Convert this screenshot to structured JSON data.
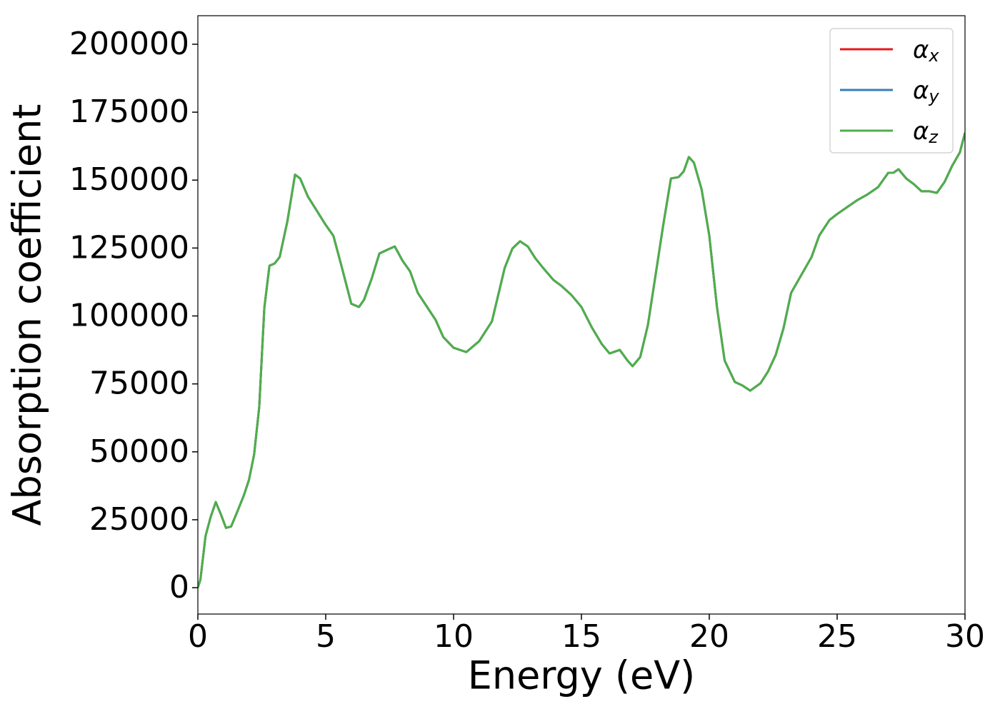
{
  "chart_data": {
    "type": "line",
    "xlabel": "Energy (eV)",
    "ylabel": "Absorption coefficient",
    "x": [
      0,
      0.1,
      0.3,
      0.5,
      0.7,
      0.9,
      1.1,
      1.3,
      1.5,
      1.8,
      2.0,
      2.2,
      2.4,
      2.6,
      2.8,
      3.0,
      3.2,
      3.5,
      3.8,
      4.0,
      4.3,
      4.6,
      5.0,
      5.3,
      5.6,
      6.0,
      6.3,
      6.5,
      6.8,
      7.1,
      7.4,
      7.7,
      8.0,
      8.3,
      8.6,
      9.0,
      9.3,
      9.6,
      10.0,
      10.5,
      11.0,
      11.5,
      12.0,
      12.3,
      12.6,
      12.9,
      13.2,
      13.5,
      13.9,
      14.2,
      14.6,
      15.0,
      15.4,
      15.8,
      16.1,
      16.5,
      16.8,
      17.0,
      17.3,
      17.6,
      17.9,
      18.2,
      18.5,
      18.8,
      19.0,
      19.2,
      19.4,
      19.7,
      20.0,
      20.3,
      20.6,
      21.0,
      21.3,
      21.6,
      22.0,
      22.3,
      22.6,
      22.9,
      23.2,
      23.6,
      24.0,
      24.3,
      24.7,
      25.0,
      25.4,
      25.8,
      26.2,
      26.6,
      27.0,
      27.2,
      27.4,
      27.7,
      28.0,
      28.3,
      28.6,
      28.9,
      29.2,
      29.5,
      29.8,
      30.0
    ],
    "series": [
      {
        "name": "αx",
        "color": "#e41a1c",
        "values": [
          0,
          3000,
          19000,
          26000,
          31500,
          27000,
          22000,
          22500,
          27000,
          34000,
          39700,
          49000,
          66500,
          103000,
          118500,
          119300,
          121700,
          134800,
          152000,
          150600,
          144000,
          139500,
          133500,
          129500,
          119000,
          104500,
          103300,
          106000,
          113800,
          123000,
          124300,
          125600,
          120400,
          116400,
          108500,
          102800,
          98500,
          92200,
          88300,
          86700,
          90700,
          98000,
          117700,
          124800,
          127500,
          125600,
          121200,
          117700,
          113300,
          111200,
          107800,
          103300,
          95900,
          89600,
          86200,
          87500,
          83600,
          81500,
          84900,
          96700,
          115100,
          133500,
          150600,
          151100,
          153200,
          158500,
          156400,
          146600,
          129600,
          103300,
          83600,
          75700,
          74400,
          72500,
          75200,
          79600,
          85700,
          95400,
          108500,
          115100,
          121700,
          129600,
          135300,
          137500,
          140100,
          142700,
          144800,
          147400,
          152700,
          152700,
          154000,
          150600,
          148500,
          145900,
          145900,
          145300,
          149300,
          155300,
          160200,
          167400
        ]
      },
      {
        "name": "αy",
        "color": "#377eb8",
        "values": [
          0,
          3000,
          19000,
          26000,
          31500,
          27000,
          22000,
          22500,
          27000,
          34000,
          39700,
          49000,
          66500,
          103000,
          118500,
          119300,
          121700,
          134800,
          152000,
          150600,
          144000,
          139500,
          133500,
          129500,
          119000,
          104500,
          103300,
          106000,
          113800,
          123000,
          124300,
          125600,
          120400,
          116400,
          108500,
          102800,
          98500,
          92200,
          88300,
          86700,
          90700,
          98000,
          117700,
          124800,
          127500,
          125600,
          121200,
          117700,
          113300,
          111200,
          107800,
          103300,
          95900,
          89600,
          86200,
          87500,
          83600,
          81500,
          84900,
          96700,
          115100,
          133500,
          150600,
          151100,
          153200,
          158500,
          156400,
          146600,
          129600,
          103300,
          83600,
          75700,
          74400,
          72500,
          75200,
          79600,
          85700,
          95400,
          108500,
          115100,
          121700,
          129600,
          135300,
          137500,
          140100,
          142700,
          144800,
          147400,
          152700,
          152700,
          154000,
          150600,
          148500,
          145900,
          145900,
          145300,
          149300,
          155300,
          160200,
          167400
        ]
      },
      {
        "name": "αz",
        "color": "#4daf4a",
        "values": [
          0,
          3000,
          19000,
          26000,
          31500,
          27000,
          22000,
          22500,
          27000,
          34000,
          39700,
          49000,
          66500,
          103000,
          118500,
          119300,
          121700,
          134800,
          152000,
          150600,
          144000,
          139500,
          133500,
          129500,
          119000,
          104500,
          103300,
          106000,
          113800,
          123000,
          124300,
          125600,
          120400,
          116400,
          108500,
          102800,
          98500,
          92200,
          88300,
          86700,
          90700,
          98000,
          117700,
          124800,
          127500,
          125600,
          121200,
          117700,
          113300,
          111200,
          107800,
          103300,
          95900,
          89600,
          86200,
          87500,
          83600,
          81500,
          84900,
          96700,
          115100,
          133500,
          150600,
          151100,
          153200,
          158500,
          156400,
          146600,
          129600,
          103300,
          83600,
          75700,
          74400,
          72500,
          75200,
          79600,
          85700,
          95400,
          108500,
          115100,
          121700,
          129600,
          135300,
          137500,
          140100,
          142700,
          144800,
          147400,
          152700,
          152700,
          154000,
          150600,
          148500,
          145900,
          145900,
          145300,
          149300,
          155300,
          160200,
          167400
        ]
      }
    ],
    "xlim": [
      0,
      30
    ],
    "xticks": [
      0,
      5,
      10,
      15,
      20,
      25,
      30
    ],
    "ylim": [
      -9700,
      210500
    ],
    "yticks": [
      0,
      25000,
      50000,
      75000,
      100000,
      125000,
      150000,
      175000,
      200000
    ],
    "legend": "upper right"
  }
}
